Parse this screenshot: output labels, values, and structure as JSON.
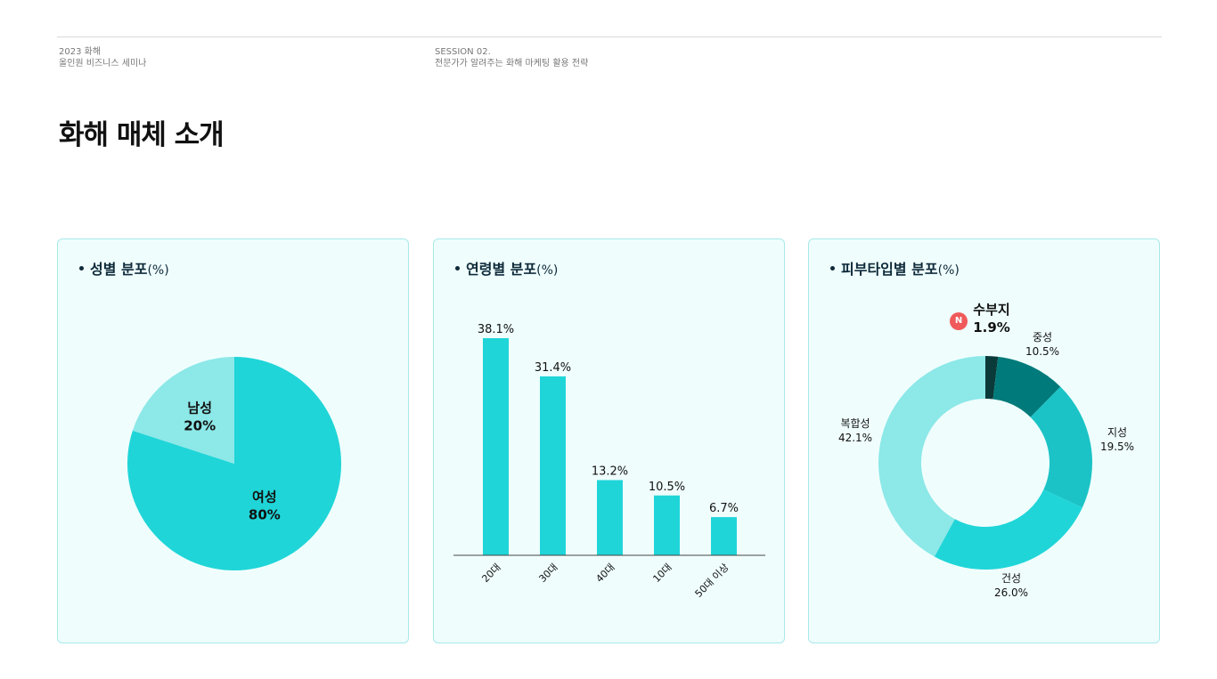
{
  "header": {
    "left_line1": "2023 화해",
    "left_line2": "올인원 비즈니스 세미나",
    "mid_line1": "SESSION 02.",
    "mid_line2": "전문가가 알려주는 화해 마케팅 활용 전략"
  },
  "page_title": "화해 매체 소개",
  "colors": {
    "card_bg": "#effefd",
    "card_border": "#a8e9ea",
    "primary": "#20d5d8",
    "light": "#8de8e8",
    "mid": "#1bc3c6",
    "dark": "#007a7a",
    "darkest": "#0b3a3a",
    "badge": "#f05a5a"
  },
  "chart_data": [
    {
      "type": "pie",
      "title": "성별 분포",
      "unit_label": "(%)",
      "slices": [
        {
          "label": "여성",
          "value": 80,
          "display": "80%",
          "color": "#20d5d8"
        },
        {
          "label": "남성",
          "value": 20,
          "display": "20%",
          "color": "#8de8e8"
        }
      ]
    },
    {
      "type": "bar",
      "title": "연령별 분포",
      "unit_label": "(%)",
      "categories": [
        "20대",
        "30대",
        "40대",
        "10대",
        "50대 이상"
      ],
      "values": [
        38.1,
        31.4,
        13.2,
        10.5,
        6.7
      ],
      "value_labels": [
        "38.1%",
        "31.4%",
        "13.2%",
        "10.5%",
        "6.7%"
      ],
      "color": "#20d5d8"
    },
    {
      "type": "pie",
      "subtype": "donut",
      "title": "피부타입별 분포",
      "unit_label": "(%)",
      "slices": [
        {
          "label": "수부지",
          "value": 1.9,
          "display": "1.9%",
          "color": "#0b3a3a",
          "badge": "N"
        },
        {
          "label": "중성",
          "value": 10.5,
          "display": "10.5%",
          "color": "#007a7a"
        },
        {
          "label": "지성",
          "value": 19.5,
          "display": "19.5%",
          "color": "#1bc3c6"
        },
        {
          "label": "건성",
          "value": 26.0,
          "display": "26.0%",
          "color": "#20d5d8"
        },
        {
          "label": "복합성",
          "value": 42.1,
          "display": "42.1%",
          "color": "#8de8e8"
        }
      ]
    }
  ]
}
